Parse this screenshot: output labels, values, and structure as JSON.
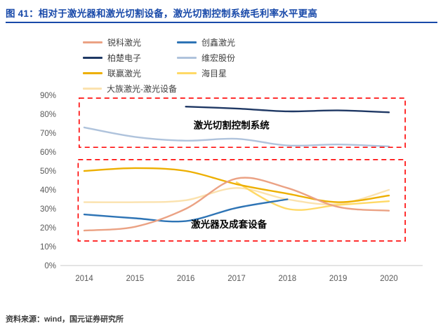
{
  "title": "图 41：相对于激光器和激光切割设备，激光切割控制系统毛利率水平更高",
  "source": "资料来源：wind，国元证券研究所",
  "colors": {
    "title_accent": "#1849A9",
    "annotation_border": "#FF0000",
    "axis_line": "#C9C9C9",
    "axis_text": "#595959"
  },
  "chart_data": {
    "type": "line",
    "x": [
      2014,
      2015,
      2016,
      2017,
      2018,
      2019,
      2020
    ],
    "x_tick_labels": [
      "2014",
      "2015",
      "2016",
      "2017",
      "2018",
      "2019",
      "2020"
    ],
    "ylim": [
      0,
      90
    ],
    "y_ticks": [
      "0%",
      "10%",
      "20%",
      "30%",
      "40%",
      "50%",
      "60%",
      "70%",
      "80%",
      "90%"
    ],
    "grid": false,
    "legend_position": "top",
    "ylabel": "",
    "xlabel": "",
    "series": [
      {
        "name": "锐科激光",
        "color": "#EBA284",
        "values": [
          18.5,
          20.5,
          30,
          46,
          41,
          31,
          29
        ]
      },
      {
        "name": "创鑫激光",
        "color": "#2E74B5",
        "values": [
          27,
          25,
          23.5,
          30.5,
          35,
          null,
          null
        ]
      },
      {
        "name": "柏楚电子",
        "color": "#1F3864",
        "values": [
          null,
          null,
          84,
          83,
          81.5,
          82,
          81
        ]
      },
      {
        "name": "维宏股份",
        "color": "#AFC3DC",
        "values": [
          73,
          68,
          66,
          67,
          63.5,
          64,
          63
        ]
      },
      {
        "name": "联赢激光",
        "color": "#EDAF00",
        "values": [
          50,
          51.5,
          50,
          43,
          38,
          33.5,
          37
        ]
      },
      {
        "name": "海目星",
        "color": "#FFD966",
        "values": [
          null,
          null,
          null,
          44,
          30,
          32,
          34
        ]
      },
      {
        "name": "大族激光-激光设备",
        "color": "#FBE2AE",
        "values": [
          33.5,
          33.5,
          34.5,
          41,
          35,
          32.5,
          40
        ]
      }
    ],
    "annotations": [
      {
        "label": "激光切割控制系统",
        "label_x": 2016.9,
        "label_y": 72.5,
        "box": {
          "x0": 2013.9,
          "x1": 2020.32,
          "y0": 62.5,
          "y1": 88.5
        }
      },
      {
        "label": "激光器及成套设备",
        "label_x": 2016.85,
        "label_y": 20,
        "box": {
          "x0": 2013.88,
          "x1": 2020.32,
          "y0": 13,
          "y1": 56
        }
      }
    ]
  }
}
